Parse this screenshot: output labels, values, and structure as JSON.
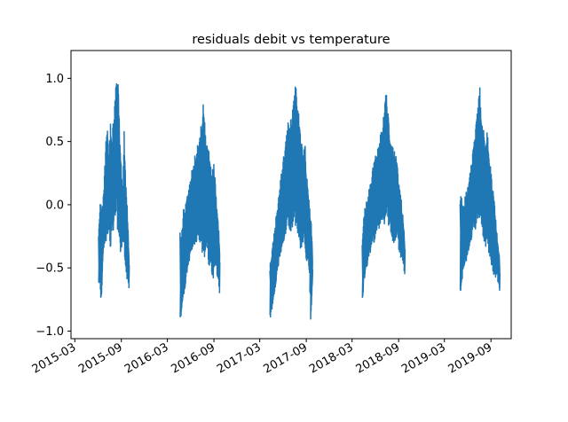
{
  "chart_data": {
    "type": "line",
    "title": "residuals debit vs temperature",
    "xlabel": "",
    "ylabel": "",
    "x_axis_type": "date",
    "xlim": [
      "2015-02-14",
      "2019-11-20"
    ],
    "ylim": [
      -1.06,
      1.22
    ],
    "x_ticks": [
      "2015-03",
      "2015-09",
      "2016-03",
      "2016-09",
      "2017-03",
      "2017-09",
      "2018-03",
      "2018-09",
      "2019-03",
      "2019-09"
    ],
    "y_ticks": [
      -1.0,
      -0.5,
      0.0,
      0.5,
      1.0
    ],
    "grid": false,
    "legend": "none",
    "line_color": "#1f77b4",
    "series": [
      {
        "segments": [
          {
            "x": [
              "2015-06-03",
              "2015-06-08",
              "2015-06-14",
              "2015-06-20",
              "2015-06-26",
              "2015-07-02",
              "2015-07-08",
              "2015-07-14",
              "2015-07-20",
              "2015-07-26",
              "2015-08-01",
              "2015-08-07",
              "2015-08-13",
              "2015-08-19",
              "2015-08-25",
              "2015-08-31",
              "2015-09-06",
              "2015-09-12",
              "2015-09-18",
              "2015-09-24",
              "2015-10-01"
            ],
            "min": [
              -0.68,
              -0.62,
              -0.8,
              -0.45,
              -0.35,
              -0.3,
              -0.25,
              -0.2,
              -0.35,
              -0.25,
              -0.2,
              -0.1,
              -0.05,
              -0.3,
              -0.35,
              -0.4,
              -0.25,
              -0.4,
              -0.5,
              -0.6,
              -0.66
            ],
            "max": [
              -0.25,
              0.0,
              0.02,
              0.05,
              0.25,
              0.55,
              0.6,
              0.4,
              0.65,
              0.55,
              0.7,
              0.9,
              1.12,
              1.05,
              0.6,
              0.35,
              0.05,
              0.6,
              0.2,
              0.0,
              -0.4
            ]
          },
          {
            "x": [
              "2016-04-20",
              "2016-04-26",
              "2016-05-02",
              "2016-05-08",
              "2016-05-14",
              "2016-05-20",
              "2016-05-26",
              "2016-06-01",
              "2016-06-07",
              "2016-06-13",
              "2016-06-19",
              "2016-06-25",
              "2016-07-01",
              "2016-07-07",
              "2016-07-13",
              "2016-07-19",
              "2016-07-25",
              "2016-07-31",
              "2016-08-06",
              "2016-08-12",
              "2016-08-18",
              "2016-08-24",
              "2016-08-30",
              "2016-09-05",
              "2016-09-11",
              "2016-09-17",
              "2016-09-23"
            ],
            "min": [
              -0.92,
              -0.88,
              -0.75,
              -0.7,
              -0.6,
              -0.5,
              -0.45,
              -0.4,
              -0.35,
              -0.3,
              -0.35,
              -0.3,
              -0.25,
              -0.3,
              -0.35,
              -0.4,
              -0.45,
              -0.4,
              -0.35,
              -0.5,
              -0.45,
              -0.55,
              -0.6,
              -0.5,
              -0.55,
              -0.6,
              -0.7
            ],
            "max": [
              -0.2,
              -0.25,
              -0.05,
              0.0,
              0.05,
              0.1,
              0.15,
              0.2,
              0.3,
              0.35,
              0.4,
              0.45,
              0.5,
              0.55,
              0.65,
              0.82,
              0.7,
              0.55,
              0.45,
              0.5,
              0.35,
              0.2,
              0.4,
              0.25,
              0.0,
              -0.1,
              -0.3
            ]
          },
          {
            "x": [
              "2017-04-10",
              "2017-04-16",
              "2017-04-22",
              "2017-04-28",
              "2017-05-04",
              "2017-05-10",
              "2017-05-16",
              "2017-05-22",
              "2017-05-28",
              "2017-06-03",
              "2017-06-09",
              "2017-06-15",
              "2017-06-21",
              "2017-06-27",
              "2017-07-03",
              "2017-07-09",
              "2017-07-15",
              "2017-07-21",
              "2017-07-27",
              "2017-08-02",
              "2017-08-08",
              "2017-08-14",
              "2017-08-20",
              "2017-08-26",
              "2017-09-01",
              "2017-09-07",
              "2017-09-13",
              "2017-09-19",
              "2017-09-25"
            ],
            "min": [
              -0.95,
              -0.85,
              -0.8,
              -0.7,
              -0.65,
              -0.55,
              -0.45,
              -0.4,
              -0.35,
              -0.3,
              -0.25,
              -0.2,
              -0.15,
              -0.2,
              -0.25,
              -0.2,
              -0.15,
              -0.2,
              -0.25,
              -0.3,
              -0.35,
              -0.4,
              -0.3,
              -0.35,
              -0.45,
              -0.5,
              -0.55,
              -0.97,
              -0.6
            ],
            "max": [
              -0.45,
              -0.4,
              -0.3,
              -0.2,
              -0.1,
              0.0,
              0.1,
              0.2,
              0.3,
              0.4,
              0.45,
              0.55,
              0.65,
              0.6,
              0.7,
              0.8,
              0.95,
              1.0,
              0.8,
              0.75,
              0.6,
              0.5,
              0.4,
              0.55,
              0.3,
              0.2,
              0.0,
              -0.1,
              -0.3
            ]
          },
          {
            "x": [
              "2018-04-10",
              "2018-04-16",
              "2018-04-22",
              "2018-04-28",
              "2018-05-04",
              "2018-05-10",
              "2018-05-16",
              "2018-05-22",
              "2018-05-28",
              "2018-06-03",
              "2018-06-09",
              "2018-06-15",
              "2018-06-21",
              "2018-06-27",
              "2018-07-03",
              "2018-07-09",
              "2018-07-15",
              "2018-07-21",
              "2018-07-27",
              "2018-08-02",
              "2018-08-08",
              "2018-08-14",
              "2018-08-20",
              "2018-08-26",
              "2018-09-01",
              "2018-09-07",
              "2018-09-13",
              "2018-09-19",
              "2018-09-25"
            ],
            "min": [
              -0.78,
              -0.65,
              -0.55,
              -0.5,
              -0.45,
              -0.4,
              -0.35,
              -0.3,
              -0.3,
              -0.25,
              -0.2,
              -0.2,
              -0.15,
              -0.15,
              -0.2,
              -0.15,
              -0.1,
              -0.15,
              -0.2,
              -0.25,
              -0.3,
              -0.35,
              -0.3,
              -0.25,
              -0.35,
              -0.4,
              -0.45,
              -0.5,
              -0.55
            ],
            "max": [
              -0.3,
              -0.1,
              0.0,
              0.05,
              0.1,
              0.15,
              0.2,
              0.3,
              0.35,
              0.4,
              0.45,
              0.5,
              0.55,
              0.6,
              0.7,
              0.85,
              0.9,
              0.75,
              0.6,
              0.55,
              0.5,
              0.45,
              0.4,
              0.35,
              0.2,
              0.15,
              0.0,
              -0.1,
              -0.3
            ]
          },
          {
            "x": [
              "2019-05-02",
              "2019-05-08",
              "2019-05-14",
              "2019-05-20",
              "2019-05-26",
              "2019-06-01",
              "2019-06-07",
              "2019-06-13",
              "2019-06-19",
              "2019-06-25",
              "2019-07-01",
              "2019-07-07",
              "2019-07-13",
              "2019-07-19",
              "2019-07-25",
              "2019-07-31",
              "2019-08-06",
              "2019-08-12",
              "2019-08-18",
              "2019-08-24",
              "2019-08-30",
              "2019-09-05",
              "2019-09-11",
              "2019-09-17",
              "2019-09-23",
              "2019-09-29",
              "2019-10-05"
            ],
            "min": [
              -0.7,
              -0.65,
              -0.55,
              -0.5,
              -0.45,
              -0.4,
              -0.35,
              -0.3,
              -0.25,
              -0.2,
              -0.2,
              -0.15,
              -0.1,
              -0.15,
              -0.2,
              -0.25,
              -0.3,
              -0.35,
              -0.3,
              -0.4,
              -0.45,
              -0.5,
              -0.55,
              -0.6,
              -0.55,
              -0.62,
              -0.68
            ],
            "max": [
              0.1,
              0.05,
              0.0,
              0.05,
              0.1,
              0.15,
              0.2,
              0.3,
              0.4,
              0.5,
              0.6,
              0.7,
              0.82,
              0.95,
              0.75,
              0.65,
              0.55,
              0.5,
              0.6,
              0.4,
              0.3,
              0.2,
              0.1,
              0.0,
              -0.2,
              -0.3,
              -0.4
            ]
          }
        ]
      }
    ]
  }
}
